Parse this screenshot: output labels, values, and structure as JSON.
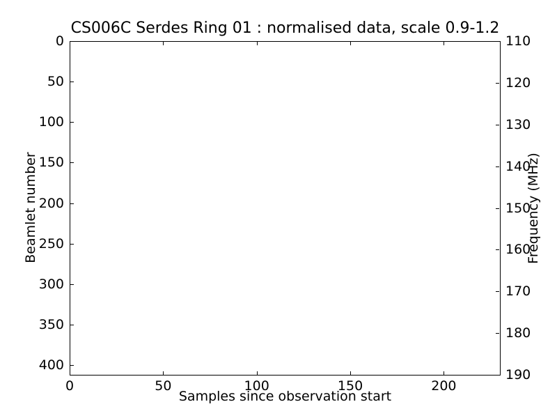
{
  "figure": {
    "background_color": "#ffffff",
    "frame_color": "#000000",
    "text_color": "#000000"
  },
  "chart_data": {
    "type": "heatmap",
    "title": "CS006C Serdes Ring 01 : normalised data, scale 0.9-1.2",
    "xlabel": "Samples since observation start",
    "ylabel_left": "Beamlet number",
    "ylabel_right": "Frequency (MHz)",
    "xlim": [
      0,
      230
    ],
    "ylim_left": [
      412,
      0
    ],
    "ylim_right": [
      190,
      110
    ],
    "xticks": [
      0,
      50,
      100,
      150,
      200
    ],
    "yticks_left": [
      0,
      50,
      100,
      150,
      200,
      250,
      300,
      350,
      400
    ],
    "yticks_right": [
      110,
      120,
      130,
      140,
      150,
      160,
      170,
      180,
      190
    ],
    "grid": false,
    "legend": null,
    "series": []
  }
}
